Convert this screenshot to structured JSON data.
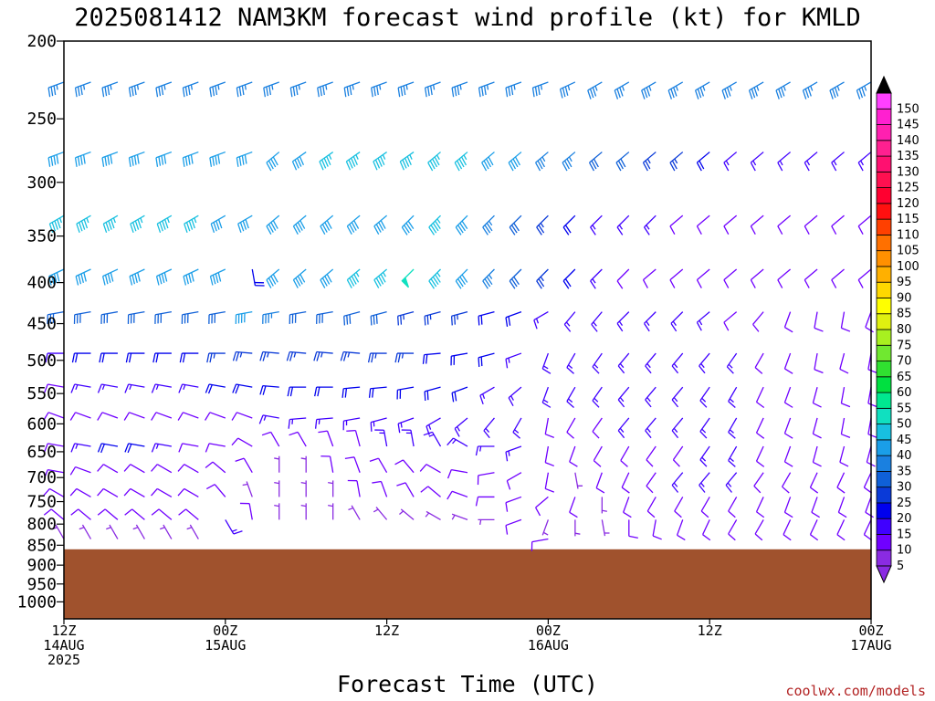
{
  "chart_data": {
    "type": "wind-barb-profile",
    "title": "2025081412 NAM3KM forecast wind profile (kt) for KMLD",
    "xlabel": "Forecast Time (UTC)",
    "ylabel": "",
    "y_scale": "log",
    "y_inverted": true,
    "ylim": [
      200,
      1050
    ],
    "y_ticks": [
      200,
      250,
      300,
      350,
      400,
      450,
      500,
      550,
      600,
      650,
      700,
      750,
      800,
      850,
      900,
      950,
      1000
    ],
    "x_ticks": [
      {
        "hour": 0,
        "label": "12Z",
        "sub1": "14AUG",
        "sub2": "2025"
      },
      {
        "hour": 12,
        "label": "00Z",
        "sub1": "15AUG",
        "sub2": ""
      },
      {
        "hour": 24,
        "label": "12Z",
        "sub1": "",
        "sub2": ""
      },
      {
        "hour": 36,
        "label": "00Z",
        "sub1": "16AUG",
        "sub2": ""
      },
      {
        "hour": 48,
        "label": "12Z",
        "sub1": "",
        "sub2": ""
      },
      {
        "hour": 60,
        "label": "00Z",
        "sub1": "17AUG",
        "sub2": ""
      }
    ],
    "xlim": [
      0,
      60
    ],
    "surface_pressure_hpa": 860,
    "surface_color": "#a0522d",
    "barb_levels": [
      225,
      275,
      330,
      385,
      435,
      490,
      540,
      590,
      640,
      690,
      740,
      790,
      835
    ],
    "barb_times_hours": [
      0,
      2,
      4,
      6,
      8,
      10,
      12,
      14,
      16,
      18,
      20,
      22,
      24,
      26,
      28,
      30,
      32,
      34,
      36,
      38,
      40,
      42,
      44,
      46,
      48,
      50,
      52,
      54,
      56,
      58,
      60
    ],
    "wind_dir_deg": [
      [
        250,
        250,
        250,
        250,
        250,
        250,
        250,
        250,
        250,
        250,
        250,
        250,
        250,
        250,
        250,
        250,
        250,
        250,
        250,
        245,
        240,
        240,
        240,
        240,
        240,
        240,
        240,
        240,
        240,
        240,
        240
      ],
      [
        250,
        250,
        250,
        250,
        250,
        250,
        250,
        250,
        230,
        235,
        235,
        235,
        235,
        235,
        230,
        230,
        230,
        230,
        230,
        230,
        230,
        230,
        230,
        230,
        230,
        230,
        230,
        230,
        230,
        230,
        230
      ],
      [
        240,
        240,
        240,
        240,
        240,
        240,
        240,
        240,
        230,
        230,
        230,
        230,
        230,
        225,
        225,
        225,
        225,
        225,
        225,
        225,
        225,
        225,
        225,
        230,
        230,
        230,
        230,
        230,
        230,
        230,
        230
      ],
      [
        245,
        245,
        245,
        245,
        245,
        245,
        245,
        170,
        230,
        230,
        230,
        230,
        230,
        225,
        225,
        225,
        225,
        225,
        225,
        225,
        225,
        225,
        230,
        230,
        230,
        230,
        230,
        230,
        230,
        230,
        230
      ],
      [
        260,
        260,
        260,
        260,
        260,
        260,
        260,
        260,
        260,
        260,
        260,
        255,
        255,
        255,
        255,
        255,
        255,
        250,
        240,
        220,
        220,
        225,
        225,
        225,
        230,
        230,
        220,
        200,
        190,
        190,
        200
      ],
      [
        270,
        270,
        270,
        270,
        270,
        270,
        270,
        275,
        275,
        275,
        275,
        275,
        270,
        270,
        265,
        260,
        255,
        250,
        200,
        210,
        215,
        220,
        220,
        220,
        220,
        215,
        210,
        200,
        190,
        195,
        190
      ],
      [
        280,
        280,
        280,
        280,
        280,
        280,
        280,
        280,
        275,
        270,
        270,
        265,
        265,
        260,
        255,
        250,
        240,
        230,
        200,
        210,
        215,
        220,
        220,
        220,
        215,
        210,
        205,
        200,
        195,
        190,
        190
      ],
      [
        290,
        290,
        290,
        290,
        290,
        290,
        290,
        290,
        280,
        265,
        265,
        260,
        255,
        250,
        240,
        230,
        220,
        210,
        190,
        210,
        215,
        220,
        220,
        220,
        215,
        210,
        205,
        200,
        195,
        190,
        190
      ],
      [
        280,
        280,
        280,
        280,
        280,
        280,
        280,
        300,
        330,
        330,
        340,
        345,
        350,
        350,
        330,
        300,
        270,
        250,
        190,
        200,
        210,
        210,
        215,
        215,
        215,
        210,
        205,
        200,
        195,
        195,
        195
      ],
      [
        280,
        290,
        300,
        300,
        300,
        300,
        310,
        330,
        0,
        0,
        350,
        340,
        330,
        320,
        300,
        280,
        260,
        240,
        190,
        170,
        200,
        205,
        215,
        220,
        220,
        220,
        215,
        210,
        205,
        205,
        205
      ],
      [
        300,
        300,
        300,
        300,
        300,
        300,
        320,
        340,
        0,
        0,
        0,
        350,
        340,
        330,
        310,
        290,
        270,
        250,
        230,
        200,
        180,
        200,
        210,
        210,
        210,
        210,
        205,
        200,
        200,
        200,
        200
      ],
      [
        310,
        310,
        310,
        310,
        310,
        310,
        150,
        350,
        0,
        0,
        0,
        330,
        320,
        310,
        300,
        290,
        270,
        250,
        200,
        180,
        170,
        180,
        190,
        200,
        205,
        210,
        210,
        205,
        205,
        205,
        205
      ],
      [
        330,
        330,
        330,
        330,
        330,
        330,
        0,
        0,
        0,
        0,
        0,
        0,
        0,
        0,
        0,
        0,
        0,
        0,
        260,
        0,
        0,
        0,
        0,
        0,
        0,
        0,
        0,
        0,
        0,
        0,
        0
      ]
    ],
    "wind_speed_kt": [
      [
        35,
        35,
        35,
        35,
        35,
        35,
        35,
        35,
        35,
        35,
        35,
        35,
        35,
        35,
        35,
        35,
        35,
        35,
        35,
        35,
        35,
        35,
        35,
        35,
        35,
        35,
        35,
        35,
        35,
        35,
        35
      ],
      [
        40,
        40,
        40,
        40,
        40,
        40,
        40,
        40,
        40,
        40,
        45,
        45,
        45,
        45,
        45,
        45,
        40,
        40,
        35,
        35,
        30,
        30,
        25,
        25,
        20,
        15,
        15,
        15,
        15,
        15,
        15
      ],
      [
        45,
        45,
        45,
        45,
        45,
        45,
        40,
        40,
        40,
        40,
        40,
        40,
        40,
        40,
        45,
        40,
        35,
        30,
        25,
        20,
        15,
        15,
        15,
        10,
        10,
        10,
        10,
        10,
        10,
        10,
        10
      ],
      [
        40,
        40,
        40,
        40,
        40,
        40,
        40,
        20,
        40,
        40,
        40,
        45,
        45,
        50,
        45,
        40,
        35,
        30,
        25,
        20,
        15,
        10,
        10,
        10,
        10,
        10,
        10,
        10,
        10,
        10,
        10
      ],
      [
        30,
        30,
        30,
        30,
        30,
        30,
        30,
        40,
        35,
        30,
        30,
        30,
        30,
        25,
        25,
        25,
        20,
        20,
        15,
        15,
        15,
        15,
        15,
        15,
        15,
        10,
        10,
        10,
        10,
        10,
        10
      ],
      [
        15,
        20,
        20,
        20,
        20,
        20,
        25,
        25,
        25,
        25,
        25,
        25,
        25,
        25,
        20,
        20,
        20,
        15,
        15,
        15,
        15,
        15,
        15,
        15,
        15,
        15,
        10,
        10,
        10,
        10,
        10
      ],
      [
        10,
        15,
        15,
        15,
        15,
        15,
        20,
        20,
        20,
        20,
        20,
        20,
        20,
        20,
        20,
        20,
        15,
        15,
        15,
        15,
        15,
        15,
        15,
        15,
        15,
        15,
        10,
        10,
        10,
        10,
        10
      ],
      [
        10,
        10,
        10,
        10,
        10,
        10,
        10,
        10,
        15,
        15,
        15,
        15,
        15,
        15,
        15,
        15,
        15,
        15,
        10,
        10,
        10,
        15,
        15,
        15,
        15,
        15,
        10,
        10,
        10,
        10,
        10
      ],
      [
        10,
        15,
        20,
        20,
        15,
        10,
        10,
        10,
        10,
        10,
        10,
        10,
        15,
        15,
        15,
        15,
        15,
        15,
        10,
        10,
        10,
        10,
        10,
        10,
        15,
        15,
        10,
        10,
        10,
        10,
        10
      ],
      [
        10,
        10,
        10,
        10,
        10,
        10,
        10,
        10,
        5,
        5,
        10,
        10,
        10,
        10,
        10,
        10,
        10,
        10,
        10,
        5,
        10,
        10,
        10,
        15,
        15,
        15,
        10,
        10,
        10,
        10,
        10
      ],
      [
        10,
        10,
        10,
        10,
        10,
        10,
        10,
        5,
        5,
        5,
        5,
        10,
        10,
        10,
        10,
        10,
        10,
        10,
        10,
        10,
        5,
        10,
        10,
        10,
        10,
        10,
        10,
        10,
        10,
        10,
        10
      ],
      [
        10,
        10,
        10,
        10,
        10,
        10,
        15,
        10,
        5,
        5,
        5,
        5,
        5,
        5,
        5,
        5,
        5,
        10,
        5,
        5,
        5,
        10,
        10,
        10,
        10,
        10,
        10,
        10,
        10,
        10,
        10
      ],
      [
        5,
        5,
        5,
        5,
        5,
        5,
        0,
        0,
        0,
        0,
        0,
        0,
        0,
        0,
        0,
        0,
        0,
        0,
        10,
        0,
        0,
        0,
        0,
        0,
        0,
        0,
        0,
        0,
        0,
        0,
        0
      ]
    ],
    "colorbar": {
      "levels": [
        5,
        10,
        15,
        20,
        25,
        30,
        35,
        40,
        45,
        50,
        55,
        60,
        65,
        70,
        75,
        80,
        85,
        90,
        95,
        100,
        105,
        110,
        115,
        120,
        125,
        130,
        135,
        140,
        145,
        150
      ],
      "colors": [
        "#8a2be2",
        "#7000ff",
        "#4000ff",
        "#0000ee",
        "#0a3ad8",
        "#0f60d8",
        "#1a80e0",
        "#1a9ee8",
        "#18c0e0",
        "#10e0c0",
        "#00e890",
        "#00e040",
        "#30e030",
        "#70e830",
        "#a8f020",
        "#e0f010",
        "#ffff00",
        "#ffd800",
        "#ffb000",
        "#ff9000",
        "#ff7000",
        "#ff4000",
        "#ff1010",
        "#ff0030",
        "#ff1050",
        "#ff1070",
        "#ff2090",
        "#ff20b0",
        "#ff20d0",
        "#ff40ff"
      ]
    },
    "credit": "coolwx.com/models"
  }
}
